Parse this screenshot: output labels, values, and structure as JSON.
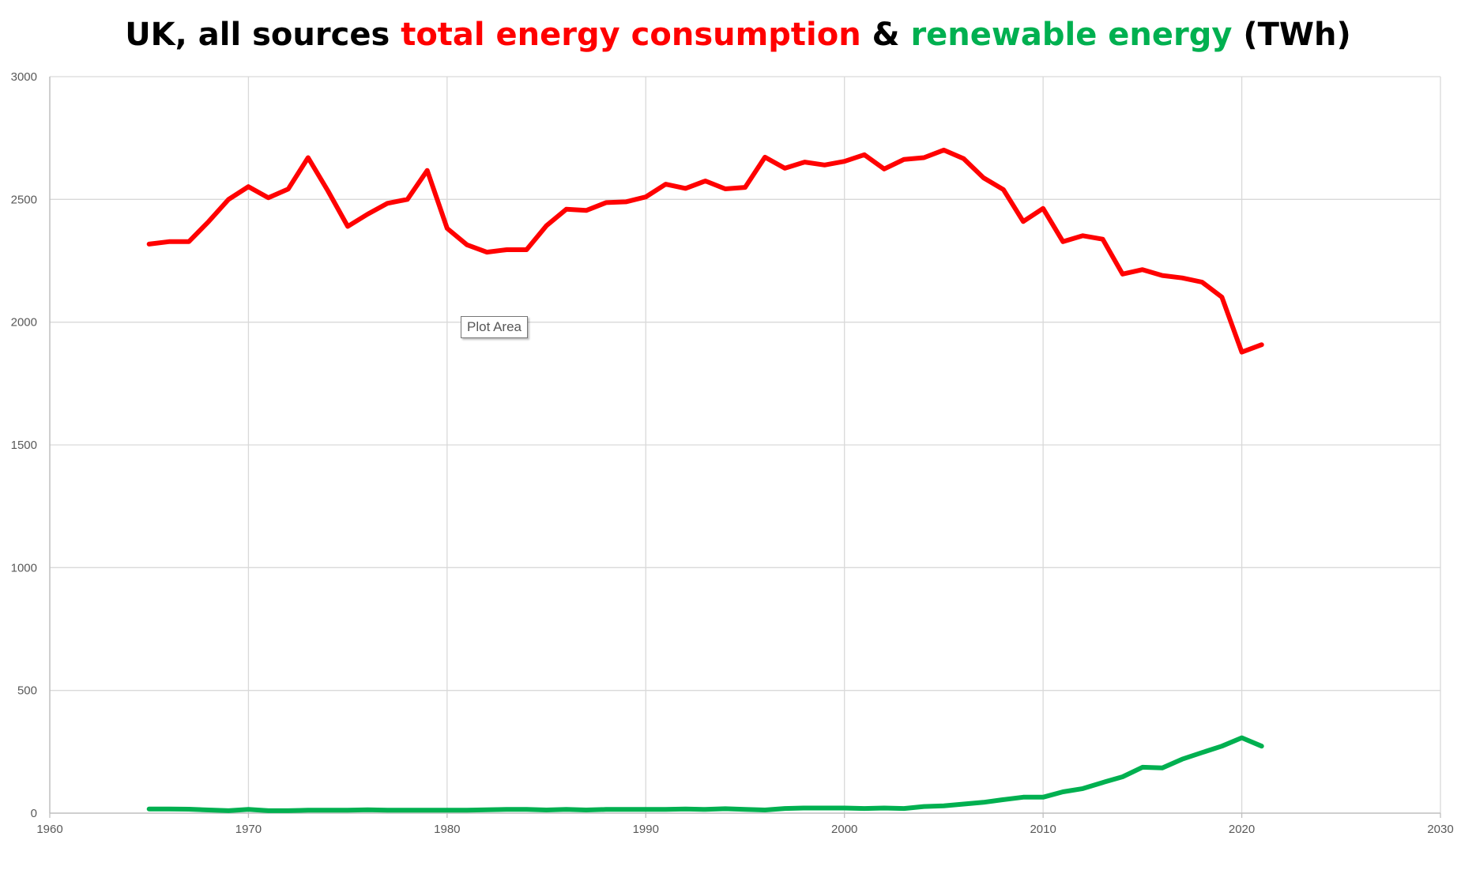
{
  "title": {
    "segments": [
      {
        "text": "UK, all sources ",
        "color": "#000000"
      },
      {
        "text": "total energy consumption",
        "color": "#ff0000"
      },
      {
        "text": " & ",
        "color": "#000000"
      },
      {
        "text": "renewable energy",
        "color": "#00b050"
      },
      {
        "text": " (TWh)",
        "color": "#000000"
      }
    ]
  },
  "tooltip": {
    "label": "Plot Area"
  },
  "colors": {
    "grid": "#d9d9d9",
    "axis": "#bfbfbf",
    "tick_text": "#595959"
  },
  "chart_data": {
    "type": "line",
    "title": "UK, all sources total energy consumption & renewable energy (TWh)",
    "xlabel": "",
    "ylabel": "",
    "xlim": [
      1960,
      2030
    ],
    "ylim": [
      0,
      3000
    ],
    "x_ticks": [
      1960,
      1970,
      1980,
      1990,
      2000,
      2010,
      2020,
      2030
    ],
    "y_ticks": [
      0,
      500,
      1000,
      1500,
      2000,
      2500,
      3000
    ],
    "grid": true,
    "legend": "none",
    "x": [
      1965,
      1966,
      1967,
      1968,
      1969,
      1970,
      1971,
      1972,
      1973,
      1974,
      1975,
      1976,
      1977,
      1978,
      1979,
      1980,
      1981,
      1982,
      1983,
      1984,
      1985,
      1986,
      1987,
      1988,
      1989,
      1990,
      1991,
      1992,
      1993,
      1994,
      1995,
      1996,
      1997,
      1998,
      1999,
      2000,
      2001,
      2002,
      2003,
      2004,
      2005,
      2006,
      2007,
      2008,
      2009,
      2010,
      2011,
      2012,
      2013,
      2014,
      2015,
      2016,
      2017,
      2018,
      2019,
      2020,
      2021
    ],
    "series": [
      {
        "color": "#ff0000",
        "values": [
          2318,
          2328,
          2328,
          2410,
          2500,
          2552,
          2507,
          2542,
          2670,
          2535,
          2390,
          2440,
          2484,
          2500,
          2618,
          2382,
          2315,
          2285,
          2295,
          2295,
          2393,
          2460,
          2455,
          2487,
          2490,
          2510,
          2562,
          2545,
          2575,
          2543,
          2549,
          2672,
          2627,
          2652,
          2640,
          2655,
          2682,
          2624,
          2663,
          2670,
          2701,
          2666,
          2588,
          2540,
          2410,
          2463,
          2328,
          2352,
          2338,
          2196,
          2214,
          2190,
          2180,
          2163,
          2102,
          1878,
          1908
        ]
      },
      {
        "color": "#00b050",
        "values": [
          17,
          17,
          16,
          13,
          10,
          15,
          10,
          10,
          12,
          12,
          12,
          14,
          12,
          12,
          12,
          12,
          12,
          14,
          15,
          15,
          13,
          15,
          13,
          15,
          15,
          15,
          15,
          17,
          15,
          18,
          15,
          13,
          19,
          21,
          21,
          21,
          19,
          21,
          19,
          27,
          30,
          37,
          44,
          55,
          65,
          65,
          87,
          100,
          125,
          148,
          187,
          184,
          220,
          247,
          273,
          307,
          273
        ]
      }
    ]
  }
}
